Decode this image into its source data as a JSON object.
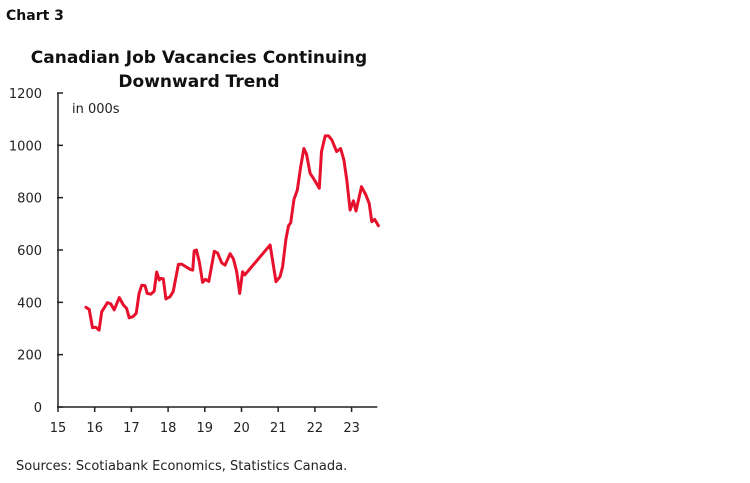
{
  "header": {
    "chart_number": "Chart 3"
  },
  "footer": {
    "source": "Sources: Scotiabank Economics, Statistics Canada."
  },
  "chart_data": {
    "type": "line",
    "title": "Canadian Job Vacancies Continuing Downward Trend",
    "title_lines": [
      "Canadian Job Vacancies Continuing",
      "Downward Trend"
    ],
    "unit_label": "in 000s",
    "xlabel": "",
    "ylabel": "",
    "xlim": [
      15,
      23.7
    ],
    "ylim": [
      0,
      1200
    ],
    "x_ticks": [
      15,
      16,
      17,
      18,
      19,
      20,
      21,
      22,
      23
    ],
    "x_tick_labels": [
      "15",
      "16",
      "17",
      "18",
      "19",
      "20",
      "21",
      "22",
      "23"
    ],
    "y_ticks": [
      0,
      200,
      400,
      600,
      800,
      1000,
      1200
    ],
    "y_tick_labels": [
      "0",
      "200",
      "400",
      "600",
      "800",
      "1000",
      "1200"
    ],
    "grid": false,
    "legend": "none",
    "colors": {
      "line": "#E8112D",
      "axis": "#222222"
    },
    "series": [
      {
        "x": [
          15.76,
          15.85,
          15.94,
          16.03,
          16.12,
          16.19,
          16.35,
          16.44,
          16.53,
          16.67,
          16.78,
          16.87,
          16.94,
          17.04,
          17.13,
          17.21,
          17.28,
          17.37,
          17.43,
          17.53,
          17.62,
          17.69,
          17.76,
          17.8,
          17.87,
          17.94,
          18.05,
          18.14,
          18.28,
          18.37,
          18.6,
          18.67,
          18.71,
          18.77,
          18.85,
          18.94,
          19.02,
          19.11,
          19.26,
          19.35,
          19.46,
          19.55,
          19.69,
          19.78,
          19.87,
          19.95,
          20.03,
          20.09,
          20.78,
          20.94,
          21.05,
          21.12,
          21.21,
          21.28,
          21.34,
          21.43,
          21.52,
          21.61,
          21.7,
          21.77,
          21.87,
          21.96,
          22.12,
          22.18,
          22.28,
          22.37,
          22.46,
          22.59,
          22.7,
          22.79,
          22.87,
          22.96,
          23.05,
          23.12,
          23.27,
          23.39,
          23.48,
          23.55,
          23.63,
          23.73
        ],
        "y": [
          381,
          373,
          303,
          305,
          294,
          364,
          399,
          394,
          371,
          418,
          390,
          377,
          341,
          345,
          358,
          434,
          465,
          464,
          434,
          431,
          443,
          516,
          485,
          492,
          490,
          413,
          421,
          441,
          545,
          546,
          526,
          523,
          597,
          600,
          555,
          476,
          488,
          480,
          595,
          588,
          551,
          542,
          586,
          566,
          517,
          434,
          517,
          505,
          619,
          479,
          498,
          536,
          641,
          692,
          704,
          794,
          829,
          916,
          988,
          967,
          893,
          874,
          836,
          976,
          1036,
          1036,
          1021,
          976,
          988,
          944,
          867,
          753,
          788,
          749,
          842,
          810,
          778,
          708,
          717,
          693
        ]
      }
    ]
  }
}
